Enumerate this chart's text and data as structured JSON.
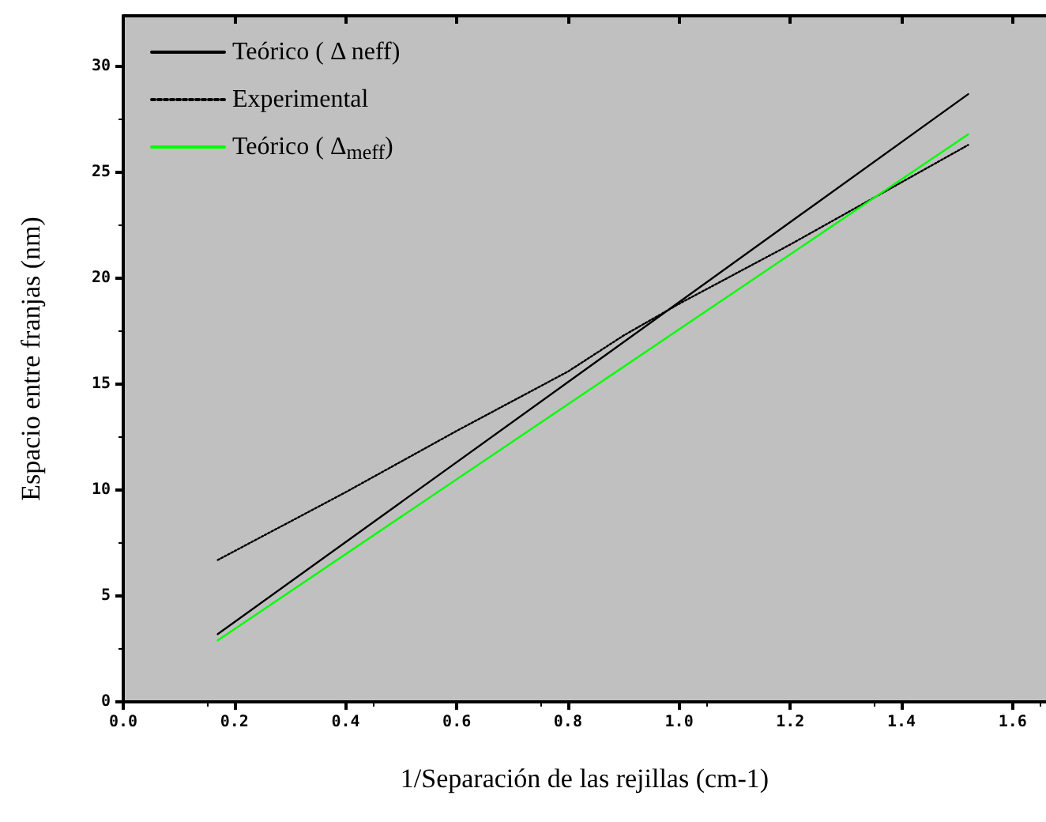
{
  "chart_data": {
    "type": "line",
    "xlabel": "1/Separación de las rejillas (cm-1)",
    "ylabel": "Espacio entre franjas (nm)",
    "xlim": [
      0,
      1.66
    ],
    "ylim": [
      0,
      32.4
    ],
    "xticks": [
      {
        "value": 0,
        "label": "0.0"
      },
      {
        "value": 0.2,
        "label": "0.2"
      },
      {
        "value": 0.4,
        "label": "0.4"
      },
      {
        "value": 0.6,
        "label": "0.6"
      },
      {
        "value": 0.8,
        "label": "0.8"
      },
      {
        "value": 1,
        "label": "1.0"
      },
      {
        "value": 1.2,
        "label": "1.2"
      },
      {
        "value": 1.4,
        "label": "1.4"
      },
      {
        "value": 1.6,
        "label": "1.6"
      }
    ],
    "yticks": [
      0,
      5,
      10,
      15,
      20,
      25,
      30
    ],
    "grid": false,
    "legend": "top left",
    "marker": "none",
    "series": [
      {
        "name": "Teórico ( Δ neff)",
        "color": "#000000",
        "line_style": "solid",
        "x": [
          0.17,
          1.52
        ],
        "values": [
          3.2,
          28.7
        ]
      },
      {
        "name": "Experimental",
        "color": "#000000",
        "line_style": "dotted",
        "x": [
          0.17,
          0.4,
          0.6,
          0.8,
          0.9,
          1.0,
          1.2,
          1.52
        ],
        "values": [
          6.7,
          9.9,
          12.8,
          15.6,
          17.3,
          18.8,
          21.6,
          26.3
        ]
      },
      {
        "name": "Teórico ( Δ$_{meff}$)",
        "color": "#00ff00",
        "line_style": "solid",
        "x": [
          0.17,
          1.52
        ],
        "values": [
          2.9,
          26.8
        ]
      }
    ]
  }
}
